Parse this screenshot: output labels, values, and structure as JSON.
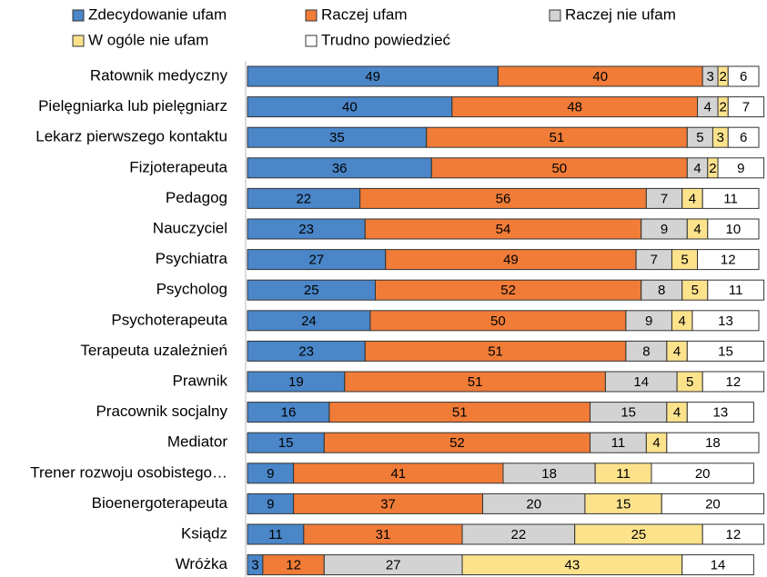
{
  "chart_data": {
    "type": "bar",
    "orientation": "horizontal",
    "stacked": true,
    "categories": [
      "Ratownik medyczny",
      "Pielęgniarka lub pielęgniarz",
      "Lekarz pierwszego kontaktu",
      "Fizjoterapeuta",
      "Pedagog",
      "Nauczyciel",
      "Psychiatra",
      "Psycholog",
      "Psychoterapeuta",
      "Terapeuta uzależnień",
      "Prawnik",
      "Pracownik socjalny",
      "Mediator",
      "Trener rozwoju osobistego…",
      "Bioenergoterapeuta",
      "Ksiądz",
      "Wróżka"
    ],
    "series": [
      {
        "name": "Zdecydowanie ufam",
        "color": "#4a86c8",
        "values": [
          49,
          40,
          35,
          36,
          22,
          23,
          27,
          25,
          24,
          23,
          19,
          16,
          15,
          9,
          9,
          11,
          3
        ]
      },
      {
        "name": "Raczej ufam",
        "color": "#f07c38",
        "values": [
          40,
          48,
          51,
          50,
          56,
          54,
          49,
          52,
          50,
          51,
          51,
          51,
          52,
          41,
          37,
          31,
          12
        ]
      },
      {
        "name": "Raczej nie ufam",
        "color": "#d3d3d3",
        "values": [
          3,
          4,
          5,
          4,
          7,
          9,
          7,
          8,
          9,
          8,
          14,
          15,
          11,
          18,
          20,
          22,
          27
        ]
      },
      {
        "name": "W ogóle nie ufam",
        "color": "#fde28c",
        "values": [
          2,
          2,
          3,
          2,
          4,
          4,
          5,
          5,
          4,
          4,
          5,
          4,
          4,
          11,
          15,
          25,
          43
        ]
      },
      {
        "name": "Trudno powiedzieć",
        "color": "#ffffff",
        "values": [
          6,
          7,
          6,
          9,
          11,
          10,
          12,
          11,
          13,
          15,
          12,
          13,
          18,
          20,
          20,
          12,
          14
        ]
      }
    ]
  }
}
